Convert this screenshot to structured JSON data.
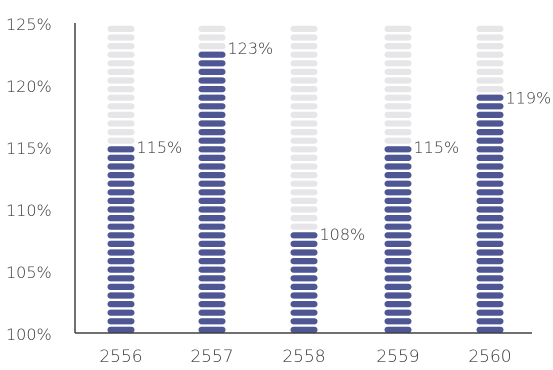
{
  "chart_data": {
    "type": "bar",
    "categories": [
      "2556",
      "2557",
      "2558",
      "2559",
      "2560"
    ],
    "values": [
      115,
      123,
      108,
      115,
      119
    ],
    "data_labels": [
      "115%",
      "123%",
      "108%",
      "115%",
      "119%"
    ],
    "y_ticks": [
      100,
      105,
      110,
      115,
      120,
      125
    ],
    "y_tick_labels": [
      "100%",
      "105%",
      "110%",
      "115%",
      "120%",
      "125%"
    ],
    "ylim": [
      100,
      125
    ],
    "unit": "%",
    "title": "",
    "xlabel": "",
    "ylabel": "",
    "grid": false,
    "legend": "none",
    "colors": {
      "bar_fill": "#4e5694",
      "bar_background": "#e6e6e8",
      "axis": "#404040",
      "text": "#3a3a3a"
    }
  }
}
